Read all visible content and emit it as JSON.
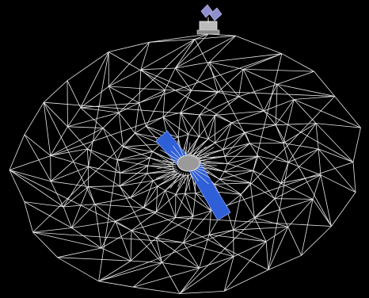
{
  "scene": {
    "description_visible_text": "",
    "colors": {
      "background": "#000000",
      "wire": "#e8e8e8",
      "solar_panel": "#2f5fd6",
      "solar_panel_edge": "#7fa0ff",
      "hub": "#9a9a9a",
      "probe_panel": "#8f8fd0"
    },
    "icons": [
      "wireframe-dish",
      "solar-panel-boom",
      "central-hub",
      "spacecraft-probe"
    ]
  }
}
